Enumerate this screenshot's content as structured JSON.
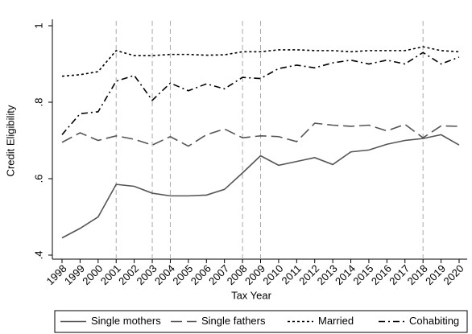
{
  "chart_data": {
    "type": "line",
    "x_label": "Tax Year",
    "y_label": "Credit Eligibility",
    "x": [
      1998,
      1999,
      2000,
      2001,
      2002,
      2003,
      2004,
      2005,
      2006,
      2007,
      2008,
      2009,
      2010,
      2011,
      2012,
      2013,
      2014,
      2015,
      2016,
      2017,
      2018,
      2019,
      2020
    ],
    "xlim": [
      1998,
      2020
    ],
    "ylim": [
      0.4,
      1
    ],
    "yticks": [
      {
        "value": 0.4,
        "label": ".4"
      },
      {
        "value": 0.6,
        "label": ".6"
      },
      {
        "value": 0.8,
        "label": ".8"
      },
      1
    ],
    "vlines": [
      2001,
      2003,
      2004,
      2008,
      2009,
      2018
    ],
    "series": [
      {
        "name": "Single mothers",
        "color": "#555555",
        "dash": "solid",
        "values": [
          0.445,
          0.47,
          0.5,
          0.585,
          0.58,
          0.562,
          0.555,
          0.555,
          0.557,
          0.572,
          0.615,
          0.66,
          0.635,
          0.645,
          0.655,
          0.637,
          0.67,
          0.675,
          0.69,
          0.7,
          0.705,
          0.715,
          0.688
        ]
      },
      {
        "name": "Single fathers",
        "color": "#555555",
        "dash": "longdash",
        "values": [
          0.695,
          0.72,
          0.7,
          0.712,
          0.703,
          0.688,
          0.71,
          0.685,
          0.715,
          0.73,
          0.707,
          0.712,
          0.71,
          0.697,
          0.745,
          0.74,
          0.737,
          0.74,
          0.725,
          0.742,
          0.707,
          0.738,
          0.737
        ]
      },
      {
        "name": "Married",
        "color": "#000000",
        "dash": "shortdash",
        "values": [
          0.868,
          0.872,
          0.88,
          0.935,
          0.922,
          0.922,
          0.925,
          0.925,
          0.923,
          0.924,
          0.932,
          0.932,
          0.937,
          0.937,
          0.935,
          0.935,
          0.932,
          0.935,
          0.935,
          0.935,
          0.945,
          0.935,
          0.932
        ]
      },
      {
        "name": "Cohabiting",
        "color": "#000000",
        "dash": "dashdot",
        "values": [
          0.715,
          0.77,
          0.775,
          0.855,
          0.87,
          0.805,
          0.85,
          0.83,
          0.848,
          0.835,
          0.865,
          0.862,
          0.888,
          0.897,
          0.89,
          0.903,
          0.91,
          0.9,
          0.91,
          0.9,
          0.93,
          0.9,
          0.918
        ]
      }
    ]
  }
}
